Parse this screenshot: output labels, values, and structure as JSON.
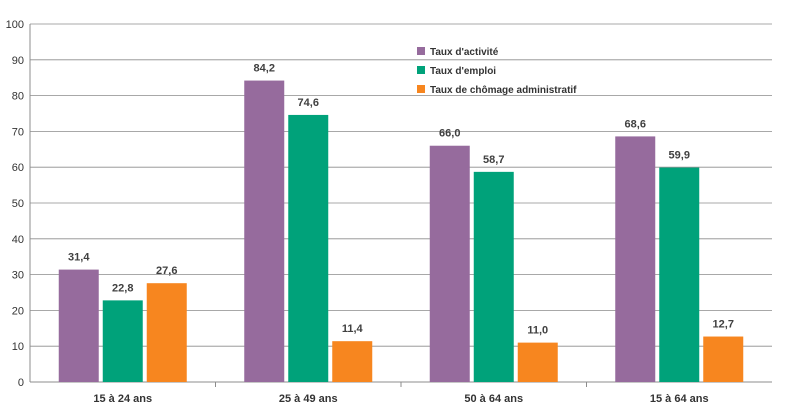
{
  "chart_data": {
    "type": "bar",
    "title": "",
    "xlabel": "",
    "ylabel": "",
    "ylim": [
      0,
      100
    ],
    "yticks": [
      0,
      10,
      20,
      30,
      40,
      50,
      60,
      70,
      80,
      90,
      100
    ],
    "grid": true,
    "legend_position": "top-center",
    "categories": [
      "15 à 24 ans",
      "25 à 49 ans",
      "50 à 64 ans",
      "15 à 64 ans"
    ],
    "series": [
      {
        "name": "Taux d'activité",
        "color": "#966b9d",
        "values": [
          31.4,
          84.2,
          66.0,
          68.6
        ],
        "labels": [
          "31,4",
          "84,2",
          "66,0",
          "68,6"
        ]
      },
      {
        "name": "Taux d'emploi",
        "color": "#00a27a",
        "values": [
          22.8,
          74.6,
          58.7,
          59.9
        ],
        "labels": [
          "22,8",
          "74,6",
          "58,7",
          "59,9"
        ]
      },
      {
        "name": "Taux de chômage administratif",
        "color": "#f7861f",
        "values": [
          27.6,
          11.4,
          11.0,
          12.7
        ],
        "labels": [
          "27,6",
          "11,4",
          "11,0",
          "12,7"
        ]
      }
    ]
  }
}
